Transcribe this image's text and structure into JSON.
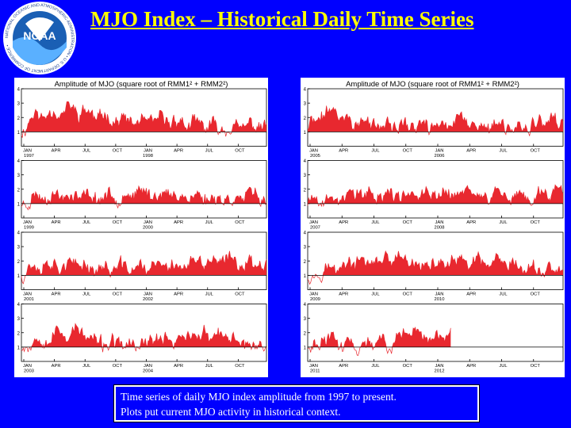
{
  "header": {
    "title": "MJO Index – Historical Daily Time Series",
    "logo_text": "NOAA",
    "logo_ring_text": "NATIONAL OCEANIC AND ATMOSPHERIC ADMINISTRATION • U.S. DEPARTMENT OF COMMERCE •"
  },
  "caption": {
    "line1": "Time series of daily MJO index amplitude from 1997 to present.",
    "line2": "Plots put current MJO activity in historical context."
  },
  "colors": {
    "background": "#0000ff",
    "title": "#ffff00",
    "fill": "#e8282f",
    "line": "#e8282f",
    "threshold": "#000000"
  },
  "chart_data": [
    {
      "type": "area",
      "panel": "left",
      "title": "Amplitude of MJO (square root of RMM1² + RMM2²)",
      "ylim": [
        0,
        4
      ],
      "yticks": [
        "1",
        "2",
        "3",
        "4"
      ],
      "threshold": 1,
      "rows": [
        {
          "xticks": [
            "JAN",
            "APR",
            "JUL",
            "OCT",
            "JAN",
            "APR",
            "JUL",
            "OCT"
          ],
          "years": [
            "1997",
            "1998"
          ],
          "seed": 11,
          "activity": [
            2.6,
            2.8,
            2.2,
            1.8,
            2.0,
            1.6,
            1.4,
            1.6
          ]
        },
        {
          "xticks": [
            "JAN",
            "APR",
            "JUL",
            "OCT",
            "JAN",
            "APR",
            "JUL",
            "OCT"
          ],
          "years": [
            "1999",
            "2000"
          ],
          "seed": 23,
          "activity": [
            1.8,
            1.7,
            1.6,
            1.9,
            1.8,
            1.6,
            1.5,
            1.7
          ]
        },
        {
          "xticks": [
            "JAN",
            "APR",
            "JUL",
            "OCT",
            "JAN",
            "APR",
            "JUL",
            "OCT"
          ],
          "years": [
            "2001",
            "2002"
          ],
          "seed": 37,
          "activity": [
            2.0,
            1.9,
            1.6,
            1.7,
            1.8,
            2.0,
            2.2,
            2.0
          ]
        },
        {
          "xticks": [
            "JAN",
            "APR",
            "JUL",
            "OCT",
            "JAN",
            "APR",
            "JUL",
            "OCT"
          ],
          "years": [
            "2003",
            "2004"
          ],
          "seed": 53,
          "activity": [
            1.9,
            2.3,
            1.3,
            1.2,
            1.8,
            2.0,
            1.7,
            1.2
          ]
        }
      ]
    },
    {
      "type": "area",
      "panel": "right",
      "title": "Amplitude of MJO (square root of RMM1² + RMM2²)",
      "ylim": [
        0,
        4
      ],
      "yticks": [
        "1",
        "2",
        "3",
        "4"
      ],
      "threshold": 1,
      "rows": [
        {
          "xticks": [
            "JAN",
            "APR",
            "JUL",
            "OCT",
            "JAN",
            "APR",
            "JUL",
            "OCT"
          ],
          "years": [
            "2005",
            "2006"
          ],
          "seed": 71,
          "activity": [
            2.8,
            1.7,
            1.5,
            1.6,
            1.9,
            1.4,
            1.5,
            1.8
          ]
        },
        {
          "xticks": [
            "JAN",
            "APR",
            "JUL",
            "OCT",
            "JAN",
            "APR",
            "JUL",
            "OCT"
          ],
          "years": [
            "2007",
            "2008"
          ],
          "seed": 89,
          "activity": [
            1.5,
            1.9,
            1.8,
            1.7,
            2.0,
            1.8,
            1.6,
            1.9
          ]
        },
        {
          "xticks": [
            "JAN",
            "APR",
            "JUL",
            "OCT",
            "JAN",
            "APR",
            "JUL",
            "OCT"
          ],
          "years": [
            "2009",
            "2010"
          ],
          "seed": 97,
          "activity": [
            1.7,
            2.1,
            2.2,
            1.8,
            2.1,
            1.9,
            1.6,
            1.5
          ]
        },
        {
          "xticks": [
            "JAN",
            "APR",
            "JUL",
            "OCT",
            "JAN",
            "APR",
            "JUL",
            "OCT"
          ],
          "years": [
            "2011",
            "2012"
          ],
          "seed": 113,
          "activity": [
            1.6,
            1.3,
            1.5,
            2.2,
            1.9
          ],
          "partial": 0.56
        }
      ]
    }
  ]
}
